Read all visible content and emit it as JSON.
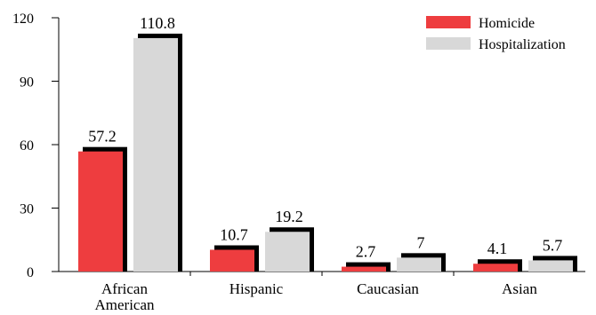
{
  "chart_data": {
    "type": "bar",
    "categories": [
      [
        "African",
        "American"
      ],
      [
        "Hispanic"
      ],
      [
        "Caucasian"
      ],
      [
        "Asian"
      ]
    ],
    "series": [
      {
        "name": "Homicide",
        "values": [
          57.2,
          10.7,
          2.7,
          4.1
        ],
        "color": "#ee3d3f"
      },
      {
        "name": "Hospitalization",
        "values": [
          110.8,
          19.2,
          7,
          5.7
        ],
        "color": "#d8d8d8"
      }
    ],
    "value_labels": [
      [
        "57.2",
        "10.7",
        "2.7",
        "4.1"
      ],
      [
        "110.8",
        "19.2",
        "7",
        "5.7"
      ]
    ],
    "yticks": [
      0,
      30,
      60,
      90,
      120
    ],
    "ylim": [
      0,
      120
    ],
    "title": "",
    "xlabel": "",
    "ylabel": "",
    "legend_position": "top-right",
    "grid": false
  }
}
